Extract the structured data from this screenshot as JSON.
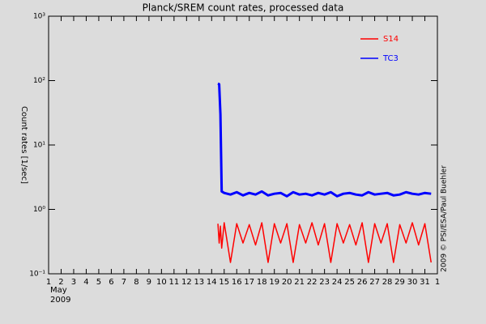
{
  "chart_data": {
    "type": "line",
    "title": "Planck/SREM count rates, processed data",
    "ylabel": "Count rates [1/sec]",
    "credit": "2009 © PSI/ESA/Paul Buehler",
    "x_month": "May",
    "x_year": "2009",
    "log_y": true,
    "grid": false,
    "legend": "top-right",
    "xlim": [
      1,
      32
    ],
    "xticks": [
      1,
      2,
      3,
      4,
      5,
      6,
      7,
      8,
      9,
      10,
      11,
      12,
      13,
      14,
      15,
      16,
      17,
      18,
      19,
      20,
      21,
      22,
      23,
      24,
      25,
      26,
      27,
      28,
      29,
      30,
      31,
      {
        "value": 32,
        "label": "1"
      }
    ],
    "ylim": [
      0.1,
      1000
    ],
    "yticks": [
      {
        "value": 0.1,
        "label": "10⁻¹"
      },
      {
        "value": 1,
        "label": "10⁰"
      },
      {
        "value": 10,
        "label": "10¹"
      },
      {
        "value": 100,
        "label": "10²"
      },
      {
        "value": 1000,
        "label": "10³"
      }
    ],
    "x": [
      14.5,
      14.6,
      14.7,
      14.8,
      15,
      15.5,
      16,
      16.5,
      17,
      17.5,
      18,
      18.5,
      19,
      19.5,
      20,
      20.5,
      21,
      21.5,
      22,
      22.5,
      23,
      23.5,
      24,
      24.5,
      25,
      25.5,
      26,
      26.5,
      27,
      27.5,
      28,
      28.5,
      29,
      29.5,
      30,
      30.5,
      31,
      31.5
    ],
    "series": [
      {
        "name": "S14",
        "color": "#ff0000",
        "values": [
          0.6,
          0.3,
          0.55,
          0.25,
          0.62,
          0.15,
          0.6,
          0.3,
          0.58,
          0.28,
          0.62,
          0.15,
          0.6,
          0.3,
          0.6,
          0.15,
          0.58,
          0.3,
          0.62,
          0.28,
          0.6,
          0.15,
          0.6,
          0.3,
          0.58,
          0.28,
          0.62,
          0.15,
          0.6,
          0.3,
          0.6,
          0.15,
          0.58,
          0.3,
          0.62,
          0.28,
          0.6,
          0.15
        ]
      },
      {
        "name": "TC3",
        "color": "#0000ff",
        "values": [
          90,
          88,
          30,
          1.9,
          1.8,
          1.7,
          1.85,
          1.65,
          1.8,
          1.7,
          1.9,
          1.65,
          1.75,
          1.8,
          1.6,
          1.85,
          1.7,
          1.75,
          1.65,
          1.8,
          1.7,
          1.85,
          1.6,
          1.75,
          1.8,
          1.7,
          1.65,
          1.85,
          1.7,
          1.75,
          1.8,
          1.65,
          1.7,
          1.85,
          1.75,
          1.7,
          1.8,
          1.75
        ]
      }
    ]
  }
}
